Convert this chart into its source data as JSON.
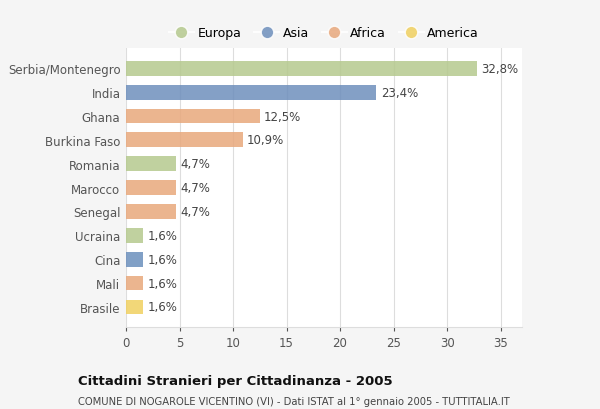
{
  "categories": [
    "Serbia/Montenegro",
    "India",
    "Ghana",
    "Burkina Faso",
    "Romania",
    "Marocco",
    "Senegal",
    "Ucraina",
    "Cina",
    "Mali",
    "Brasile"
  ],
  "values": [
    32.8,
    23.4,
    12.5,
    10.9,
    4.7,
    4.7,
    4.7,
    1.6,
    1.6,
    1.6,
    1.6
  ],
  "labels": [
    "32,8%",
    "23,4%",
    "12,5%",
    "10,9%",
    "4,7%",
    "4,7%",
    "4,7%",
    "1,6%",
    "1,6%",
    "1,6%",
    "1,6%"
  ],
  "colors": [
    "#b5c98e",
    "#6e8fbc",
    "#e8a87c",
    "#e8a87c",
    "#b5c98e",
    "#e8a87c",
    "#e8a87c",
    "#b5c98e",
    "#6b8fbc",
    "#e8a87c",
    "#f0d060"
  ],
  "legend_labels": [
    "Europa",
    "Asia",
    "Africa",
    "America"
  ],
  "legend_colors": [
    "#b5c98e",
    "#6e8fbc",
    "#e8a87c",
    "#f0d060"
  ],
  "xlim": [
    0,
    37
  ],
  "xticks": [
    0,
    5,
    10,
    15,
    20,
    25,
    30,
    35
  ],
  "title": "Cittadini Stranieri per Cittadinanza - 2005",
  "subtitle": "COMUNE DI NOGAROLE VICENTINO (VI) - Dati ISTAT al 1° gennaio 2005 - TUTTITALIA.IT",
  "bg_color": "#f5f5f5",
  "plot_bg_color": "#ffffff",
  "grid_color": "#dddddd",
  "bar_height": 0.62,
  "label_fontsize": 8.5,
  "ytick_fontsize": 8.5,
  "xtick_fontsize": 8.5
}
